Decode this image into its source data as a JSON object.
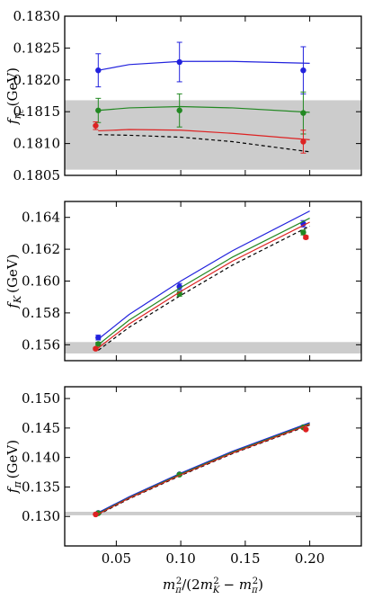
{
  "chart_data": [
    {
      "type": "scatter",
      "ylabel": "f_{η_c} (GeV)",
      "ylabel_parts": {
        "base": "f",
        "sub": "η",
        "subsub": "c",
        "unit": "(GeV)"
      },
      "xlim": [
        0.01,
        0.24
      ],
      "ylim": [
        0.1805,
        0.183
      ],
      "yticks": [
        "0.1805",
        "0.1810",
        "0.1815",
        "0.1820",
        "0.1825",
        "0.1830"
      ],
      "band": {
        "y0": 0.18059,
        "y1": 0.18168,
        "color": "#cccccc"
      },
      "series": [
        {
          "color": "#2222dd",
          "x": [
            0.036,
            0.099,
            0.195
          ],
          "y": [
            0.18215,
            0.18228,
            0.18215
          ],
          "err": [
            0.00026,
            0.00031,
            0.00037
          ],
          "fit": {
            "x": [
              0.036,
              0.06,
              0.1,
              0.14,
              0.2
            ],
            "y": [
              0.18215,
              0.18224,
              0.18229,
              0.18229,
              0.18226
            ]
          }
        },
        {
          "color": "#228822",
          "x": [
            0.036,
            0.099,
            0.195
          ],
          "y": [
            0.18152,
            0.18152,
            0.18148
          ],
          "err": [
            0.00019,
            0.00026,
            0.00033
          ],
          "fit": {
            "x": [
              0.036,
              0.06,
              0.1,
              0.14,
              0.2
            ],
            "y": [
              0.18152,
              0.18156,
              0.18158,
              0.18156,
              0.18149
            ]
          }
        },
        {
          "color": "#dd2222",
          "x": [
            0.034,
            0.195
          ],
          "y": [
            0.18128,
            0.18103
          ],
          "err": [
            6e-05,
            0.00018
          ],
          "fit": {
            "x": [
              0.036,
              0.06,
              0.1,
              0.14,
              0.2
            ],
            "y": [
              0.1812,
              0.18122,
              0.18121,
              0.18116,
              0.18106
            ]
          }
        }
      ],
      "dashed": {
        "color": "#000000",
        "x": [
          0.036,
          0.06,
          0.1,
          0.14,
          0.2
        ],
        "y": [
          0.18114,
          0.18113,
          0.1811,
          0.18103,
          0.18087
        ]
      }
    },
    {
      "type": "scatter",
      "ylabel": "f_K (GeV)",
      "ylabel_parts": {
        "base": "f",
        "sub": "K",
        "subsub": "",
        "unit": "(GeV)"
      },
      "xlim": [
        0.01,
        0.24
      ],
      "ylim": [
        0.155,
        0.165
      ],
      "yticks": [
        "0.156",
        "0.158",
        "0.160",
        "0.162",
        "0.164"
      ],
      "band": {
        "y0": 0.15545,
        "y1": 0.15617,
        "color": "#cccccc"
      },
      "series": [
        {
          "color": "#2222dd",
          "x": [
            0.036,
            0.099,
            0.195
          ],
          "y": [
            0.15645,
            0.15965,
            0.1636
          ],
          "err": [
            0.00015,
            0.0002,
            0.0002
          ],
          "fit": {
            "x": [
              0.036,
              0.06,
              0.1,
              0.14,
              0.2
            ],
            "y": [
              0.15635,
              0.1579,
              0.16,
              0.1619,
              0.1644
            ]
          }
        },
        {
          "color": "#228822",
          "x": [
            0.036,
            0.099,
            0.195
          ],
          "y": [
            0.15605,
            0.1592,
            0.16305
          ],
          "err": [
            0.0001,
            0.00015,
            0.00015
          ],
          "fit": {
            "x": [
              0.036,
              0.06,
              0.1,
              0.14,
              0.2
            ],
            "y": [
              0.156,
              0.15755,
              0.1596,
              0.1615,
              0.16395
            ]
          }
        },
        {
          "color": "#dd2222",
          "x": [
            0.034,
            0.197
          ],
          "y": [
            0.15575,
            0.16275
          ],
          "err": [
            8e-05,
            0.0001
          ],
          "fit": {
            "x": [
              0.036,
              0.06,
              0.1,
              0.14,
              0.2
            ],
            "y": [
              0.1558,
              0.1573,
              0.15935,
              0.16125,
              0.1637
            ]
          }
        }
      ],
      "dashed": {
        "color": "#000000",
        "x": [
          0.036,
          0.06,
          0.1,
          0.14,
          0.2
        ],
        "y": [
          0.15565,
          0.1571,
          0.1591,
          0.161,
          0.16345
        ]
      }
    },
    {
      "type": "scatter",
      "ylabel": "f_π (GeV)",
      "ylabel_parts": {
        "base": "f",
        "sub": "π",
        "subsub": "",
        "unit": "(GeV)"
      },
      "xlim": [
        0.01,
        0.24
      ],
      "ylim": [
        0.125,
        0.152
      ],
      "yticks": [
        "0.130",
        "0.135",
        "0.140",
        "0.145",
        "0.150"
      ],
      "band": {
        "y0": 0.1302,
        "y1": 0.1308,
        "color": "#cccccc"
      },
      "series": [
        {
          "color": "#2222dd",
          "x": [
            0.036,
            0.099,
            0.195
          ],
          "y": [
            0.1306,
            0.13715,
            0.14515
          ],
          "err": [
            0.00015,
            0.00015,
            0.00015
          ],
          "fit": {
            "x": [
              0.036,
              0.06,
              0.1,
              0.14,
              0.2
            ],
            "y": [
              0.13065,
              0.13335,
              0.13735,
              0.14105,
              0.1459
            ]
          }
        },
        {
          "color": "#228822",
          "x": [
            0.036,
            0.099,
            0.195
          ],
          "y": [
            0.13055,
            0.1371,
            0.1451
          ],
          "err": [
            0.0001,
            0.0001,
            0.0001
          ],
          "fit": {
            "x": [
              0.036,
              0.06,
              0.1,
              0.14,
              0.2
            ],
            "y": [
              0.1305,
              0.1332,
              0.1372,
              0.1409,
              0.14575
            ]
          }
        },
        {
          "color": "#dd2222",
          "x": [
            0.034,
            0.197
          ],
          "y": [
            0.13035,
            0.14475
          ],
          "err": [
            8e-05,
            8e-05
          ],
          "fit": {
            "x": [
              0.036,
              0.06,
              0.1,
              0.14,
              0.2
            ],
            "y": [
              0.1304,
              0.1331,
              0.13705,
              0.14075,
              0.1456
            ]
          }
        }
      ],
      "dashed": {
        "color": "#000000",
        "x": [
          0.036,
          0.06,
          0.1,
          0.14,
          0.2
        ],
        "y": [
          0.1303,
          0.133,
          0.13695,
          0.14065,
          0.1455
        ]
      }
    }
  ],
  "shared_x": {
    "xticks": [
      "0.05",
      "0.10",
      "0.15",
      "0.20"
    ],
    "xlabel": "m_π^2/(2m_K^2 − m_π^2)"
  }
}
